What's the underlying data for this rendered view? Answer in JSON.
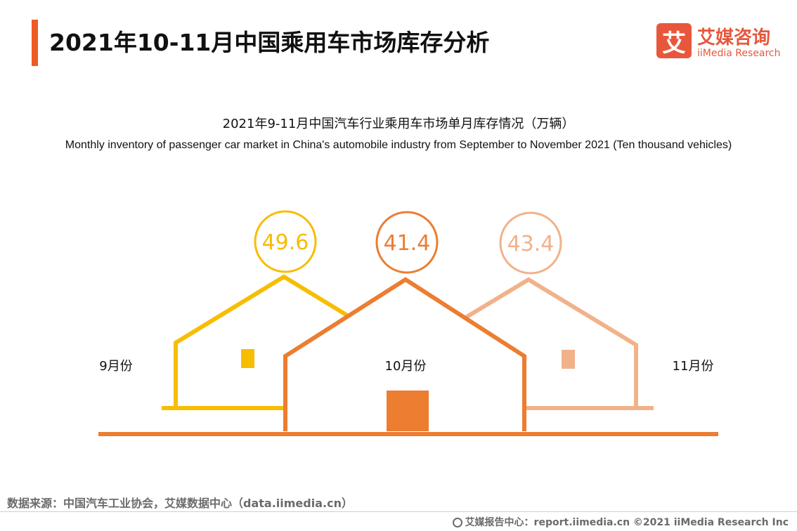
{
  "header": {
    "title": "2021年10-11月中国乘用车市场库存分析",
    "accent_color": "#ee5a24"
  },
  "logo": {
    "mark": "艾",
    "name_cn": "艾媒咨询",
    "name_en": "iiMedia Research",
    "color": "#e8573c"
  },
  "chart_titles": {
    "cn": "2021年9-11月中国汽车行业乘用车市场单月库存情况（万辆）",
    "en": "Monthly inventory of passenger car market in China's automobile industry from September to November 2021 (Ten thousand vehicles)"
  },
  "chart_data": {
    "type": "bar",
    "title": "2021年9-11月中国汽车行业乘用车市场单月库存情况（万辆）",
    "subtitle": "Monthly inventory of passenger car market in China's automobile industry from September to November 2021 (Ten thousand vehicles)",
    "categories": [
      "9月份",
      "10月份",
      "11月份"
    ],
    "values": [
      49.6,
      41.4,
      43.4
    ],
    "value_labels": [
      "49.6",
      "41.4",
      "43.4"
    ],
    "colors": [
      "#f7bd02",
      "#ec7d31",
      "#f1b28a"
    ],
    "unit": "万辆",
    "style": "house pictogram"
  },
  "footer": {
    "source": "数据来源：中国汽车工业协会，艾媒数据中心（data.iimedia.cn）",
    "report": "艾媒报告中心：report.iimedia.cn ©2021 iiMedia Research Inc"
  }
}
